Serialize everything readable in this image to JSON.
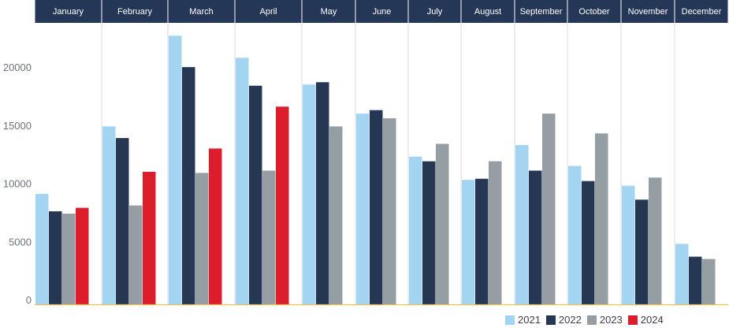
{
  "chart_data": {
    "type": "bar",
    "categories": [
      "January",
      "February",
      "March",
      "April",
      "May",
      "June",
      "July",
      "August",
      "September",
      "October",
      "November",
      "December"
    ],
    "series": [
      {
        "name": "2021",
        "color": "#a3d4f1",
        "values": [
          9500,
          15300,
          23100,
          21200,
          18900,
          16400,
          12700,
          10700,
          13700,
          11900,
          10200,
          5200
        ]
      },
      {
        "name": "2022",
        "color": "#263754",
        "values": [
          8000,
          14300,
          20400,
          18800,
          19100,
          16700,
          12300,
          10800,
          11500,
          10600,
          9000,
          4100
        ]
      },
      {
        "name": "2023",
        "color": "#949ea3",
        "values": [
          7800,
          8500,
          11300,
          11500,
          15300,
          16000,
          13800,
          12300,
          16400,
          14700,
          10900,
          3900
        ]
      },
      {
        "name": "2024",
        "color": "#dc1e2c",
        "values": [
          8300,
          11400,
          13400,
          17000,
          null,
          null,
          null,
          null,
          null,
          null,
          null,
          null
        ]
      }
    ],
    "yticks": [
      0,
      5000,
      10000,
      15000,
      20000
    ],
    "ylim": [
      0,
      25000
    ],
    "grid": "vertical separators between months",
    "legend": "bottom-right",
    "colors": {
      "header_bg": "#253757",
      "header_text": "#ffffff",
      "baseline": "#f2c14e",
      "separator": "#d6d9dd",
      "tick_text": "#6d737c"
    }
  }
}
